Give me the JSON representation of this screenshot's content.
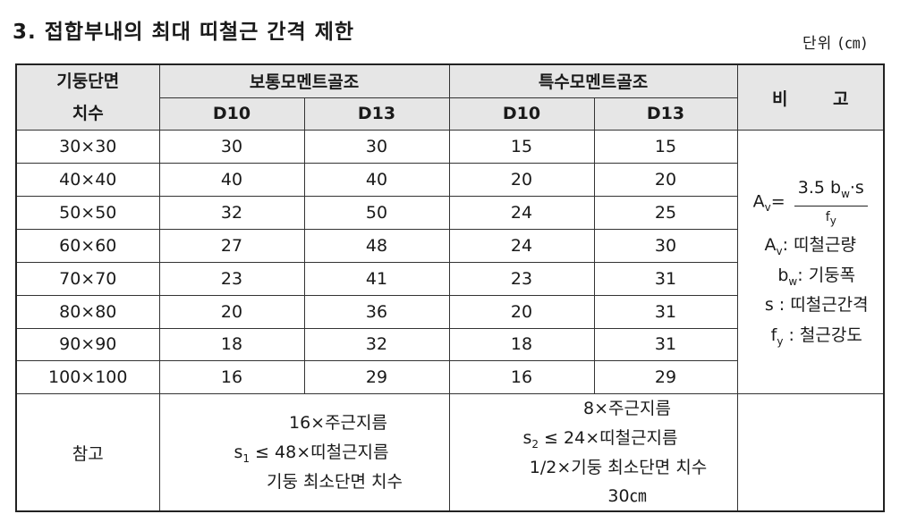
{
  "title": "3. 접합부내의 최대 띠철근 간격 제한",
  "unit": "단위 (㎝)",
  "header": {
    "col_size_line1": "기둥단면",
    "col_size_line2": "치수",
    "ordinary": "보통모멘트골조",
    "special": "특수모멘트골조",
    "remarks": "비 고",
    "d10": "D10",
    "d13": "D13"
  },
  "rows": [
    {
      "size": "30×30",
      "ord_d10": "30",
      "ord_d13": "30",
      "spc_d10": "15",
      "spc_d13": "15"
    },
    {
      "size": "40×40",
      "ord_d10": "40",
      "ord_d13": "40",
      "spc_d10": "20",
      "spc_d13": "20"
    },
    {
      "size": "50×50",
      "ord_d10": "32",
      "ord_d13": "50",
      "spc_d10": "24",
      "spc_d13": "25"
    },
    {
      "size": "60×60",
      "ord_d10": "27",
      "ord_d13": "48",
      "spc_d10": "24",
      "spc_d13": "30"
    },
    {
      "size": "70×70",
      "ord_d10": "23",
      "ord_d13": "41",
      "spc_d10": "23",
      "spc_d13": "31"
    },
    {
      "size": "80×80",
      "ord_d10": "20",
      "ord_d13": "36",
      "spc_d10": "20",
      "spc_d13": "31"
    },
    {
      "size": "90×90",
      "ord_d10": "18",
      "ord_d13": "32",
      "spc_d10": "18",
      "spc_d13": "31"
    },
    {
      "size": "100×100",
      "ord_d10": "16",
      "ord_d13": "29",
      "spc_d10": "16",
      "spc_d13": "29"
    }
  ],
  "remarks": {
    "av_symbol": "A",
    "av_sub": "v",
    "eq": "=",
    "formula_num": "3.5 b",
    "formula_num_sub": "w",
    "formula_num_tail": "·s",
    "formula_den": "f",
    "formula_den_sub": "y",
    "def_av_tail": ": 띠철근량",
    "def_bw_sym": "b",
    "def_bw_sub": "w",
    "def_bw_tail": ": 기둥폭",
    "def_s": "s : 띠철근간격",
    "def_fy_sym": "f",
    "def_fy_sub": "y",
    "def_fy_tail": " : 철근강도"
  },
  "reference": {
    "label": "참고",
    "ord_line1": "16×주근지름",
    "ord_s_sym": "s",
    "ord_s_sub": "1",
    "ord_line2_tail": " ≤ 48×띠철근지름",
    "ord_line3": "기둥 최소단면 치수",
    "spc_line1": "8×주근지름",
    "spc_s_sym": "s",
    "spc_s_sub": "2",
    "spc_line2_tail": " ≤ 24×띠철근지름",
    "spc_line3": "1/2×기둥 최소단면 치수",
    "spc_line4": "30㎝"
  }
}
